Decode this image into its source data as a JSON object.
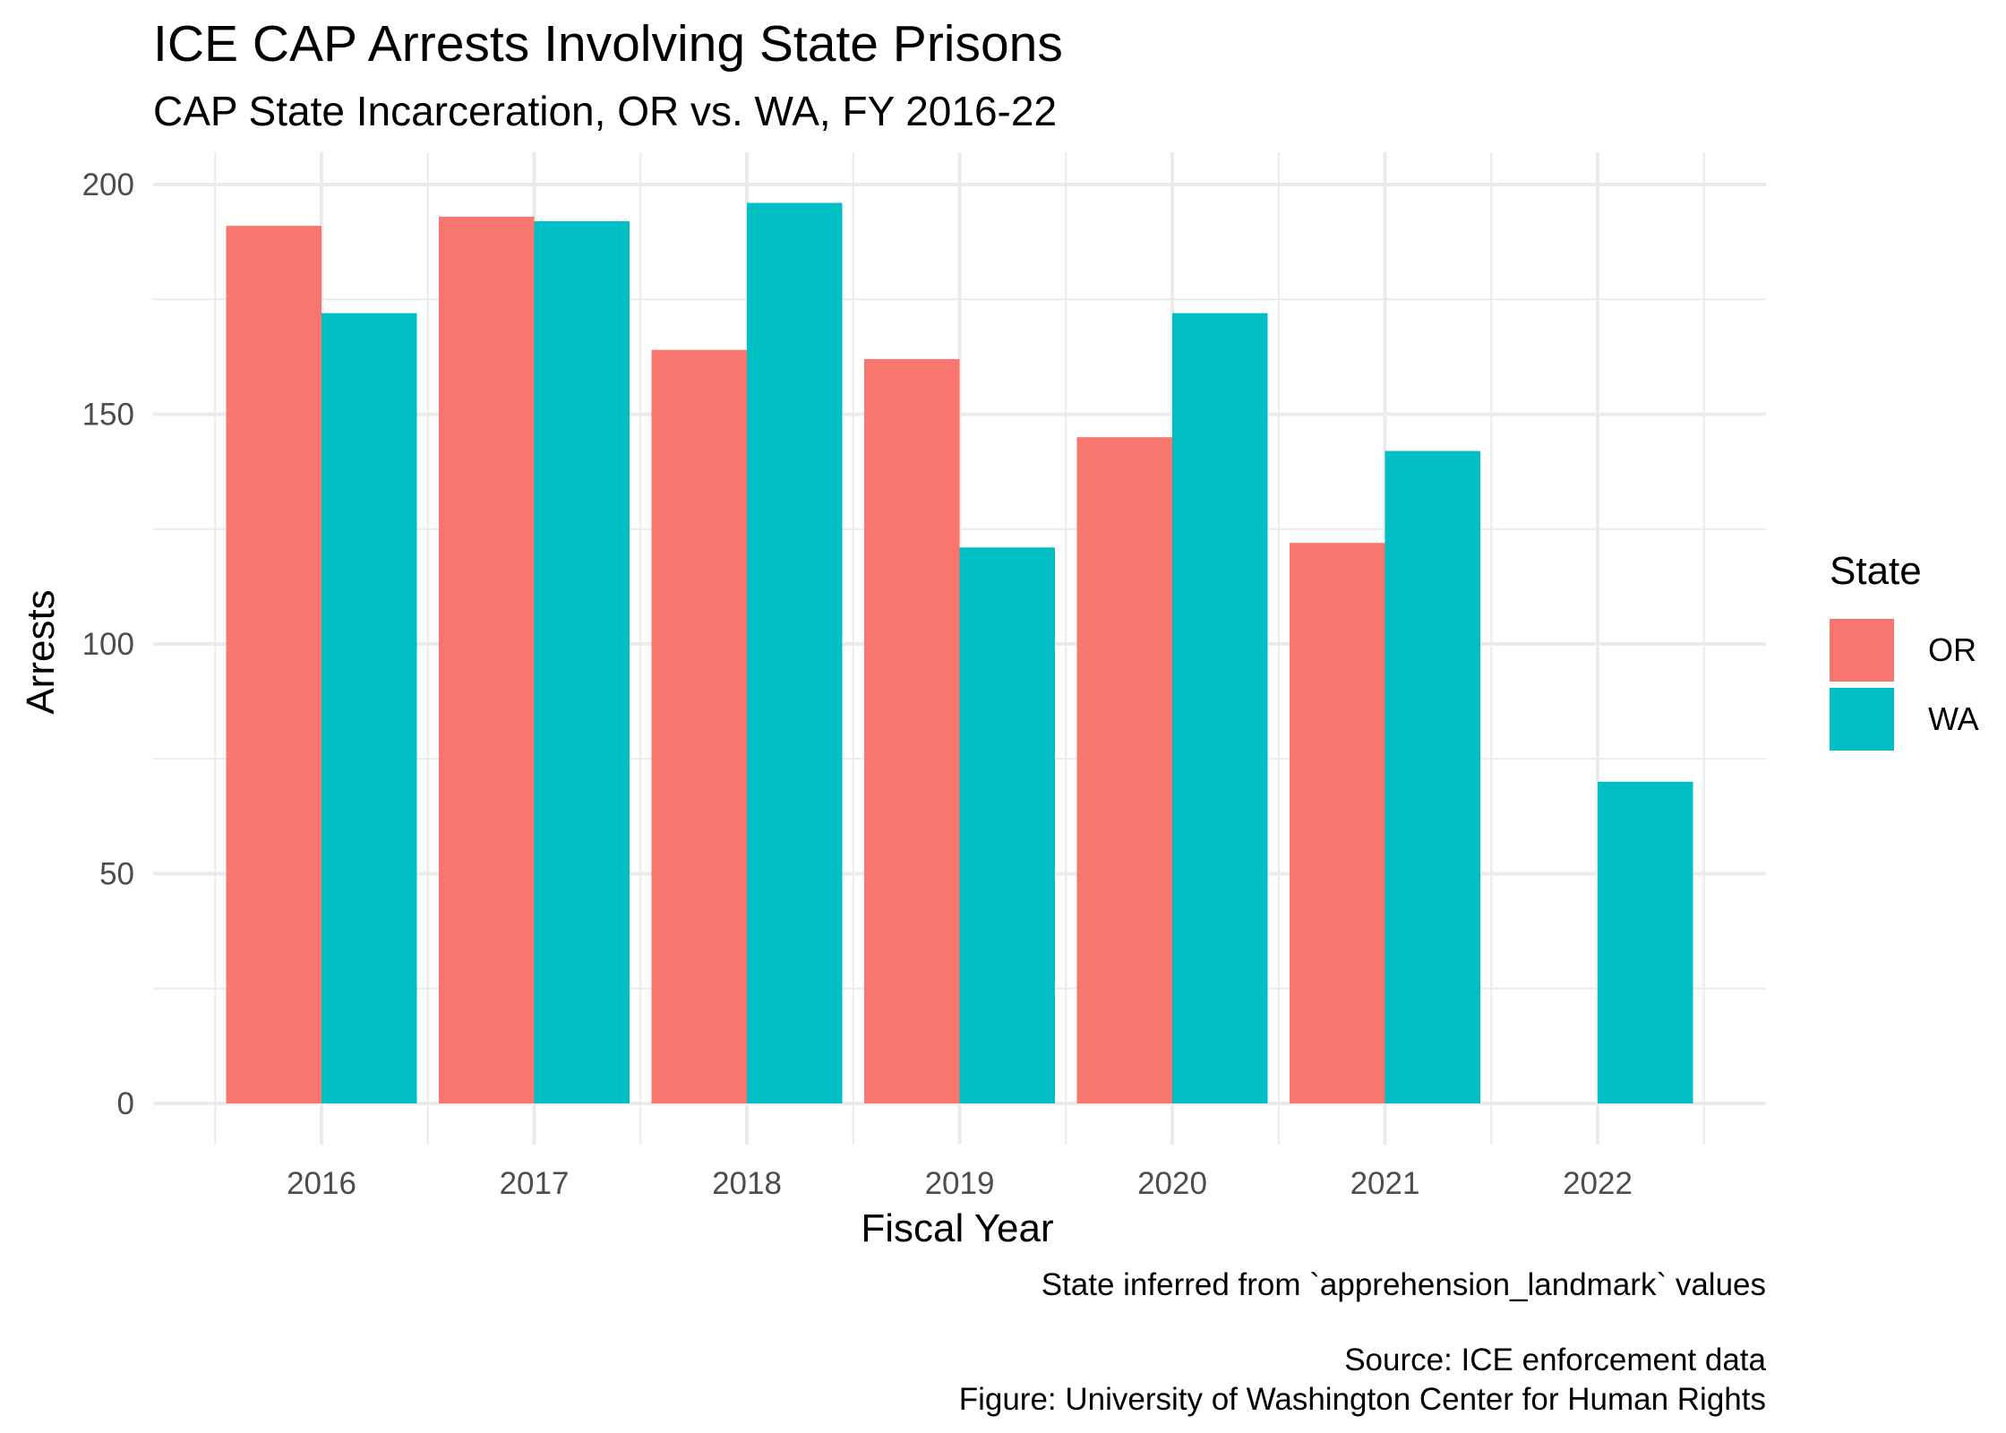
{
  "title": "ICE CAP Arrests Involving State Prisons",
  "subtitle": "CAP State Incarceration, OR vs. WA, FY 2016-22",
  "captions": {
    "line1": "State inferred from `apprehension_landmark` values",
    "line2": "Source: ICE enforcement data",
    "line3": "Figure: University of Washington Center for Human Rights"
  },
  "legend": {
    "title": "State",
    "items": [
      {
        "label": "OR",
        "color": "#F8766D"
      },
      {
        "label": "WA",
        "color": "#00BFC4"
      }
    ]
  },
  "chart_data": {
    "type": "bar",
    "title": "ICE CAP Arrests Involving State Prisons",
    "subtitle": "CAP State Incarceration, OR vs. WA, FY 2016-22",
    "xlabel": "Fiscal Year",
    "ylabel": "Arrests",
    "categories": [
      "2016",
      "2017",
      "2018",
      "2019",
      "2020",
      "2021",
      "2022"
    ],
    "series": [
      {
        "name": "OR",
        "color": "#F8766D",
        "values": [
          191,
          193,
          164,
          162,
          145,
          122,
          null
        ]
      },
      {
        "name": "WA",
        "color": "#00BFC4",
        "values": [
          172,
          192,
          196,
          121,
          172,
          142,
          70
        ]
      }
    ],
    "ylim": [
      0,
      200
    ],
    "yticks": [
      0,
      50,
      100,
      150,
      200
    ],
    "grid": true,
    "legend_position": "right"
  }
}
